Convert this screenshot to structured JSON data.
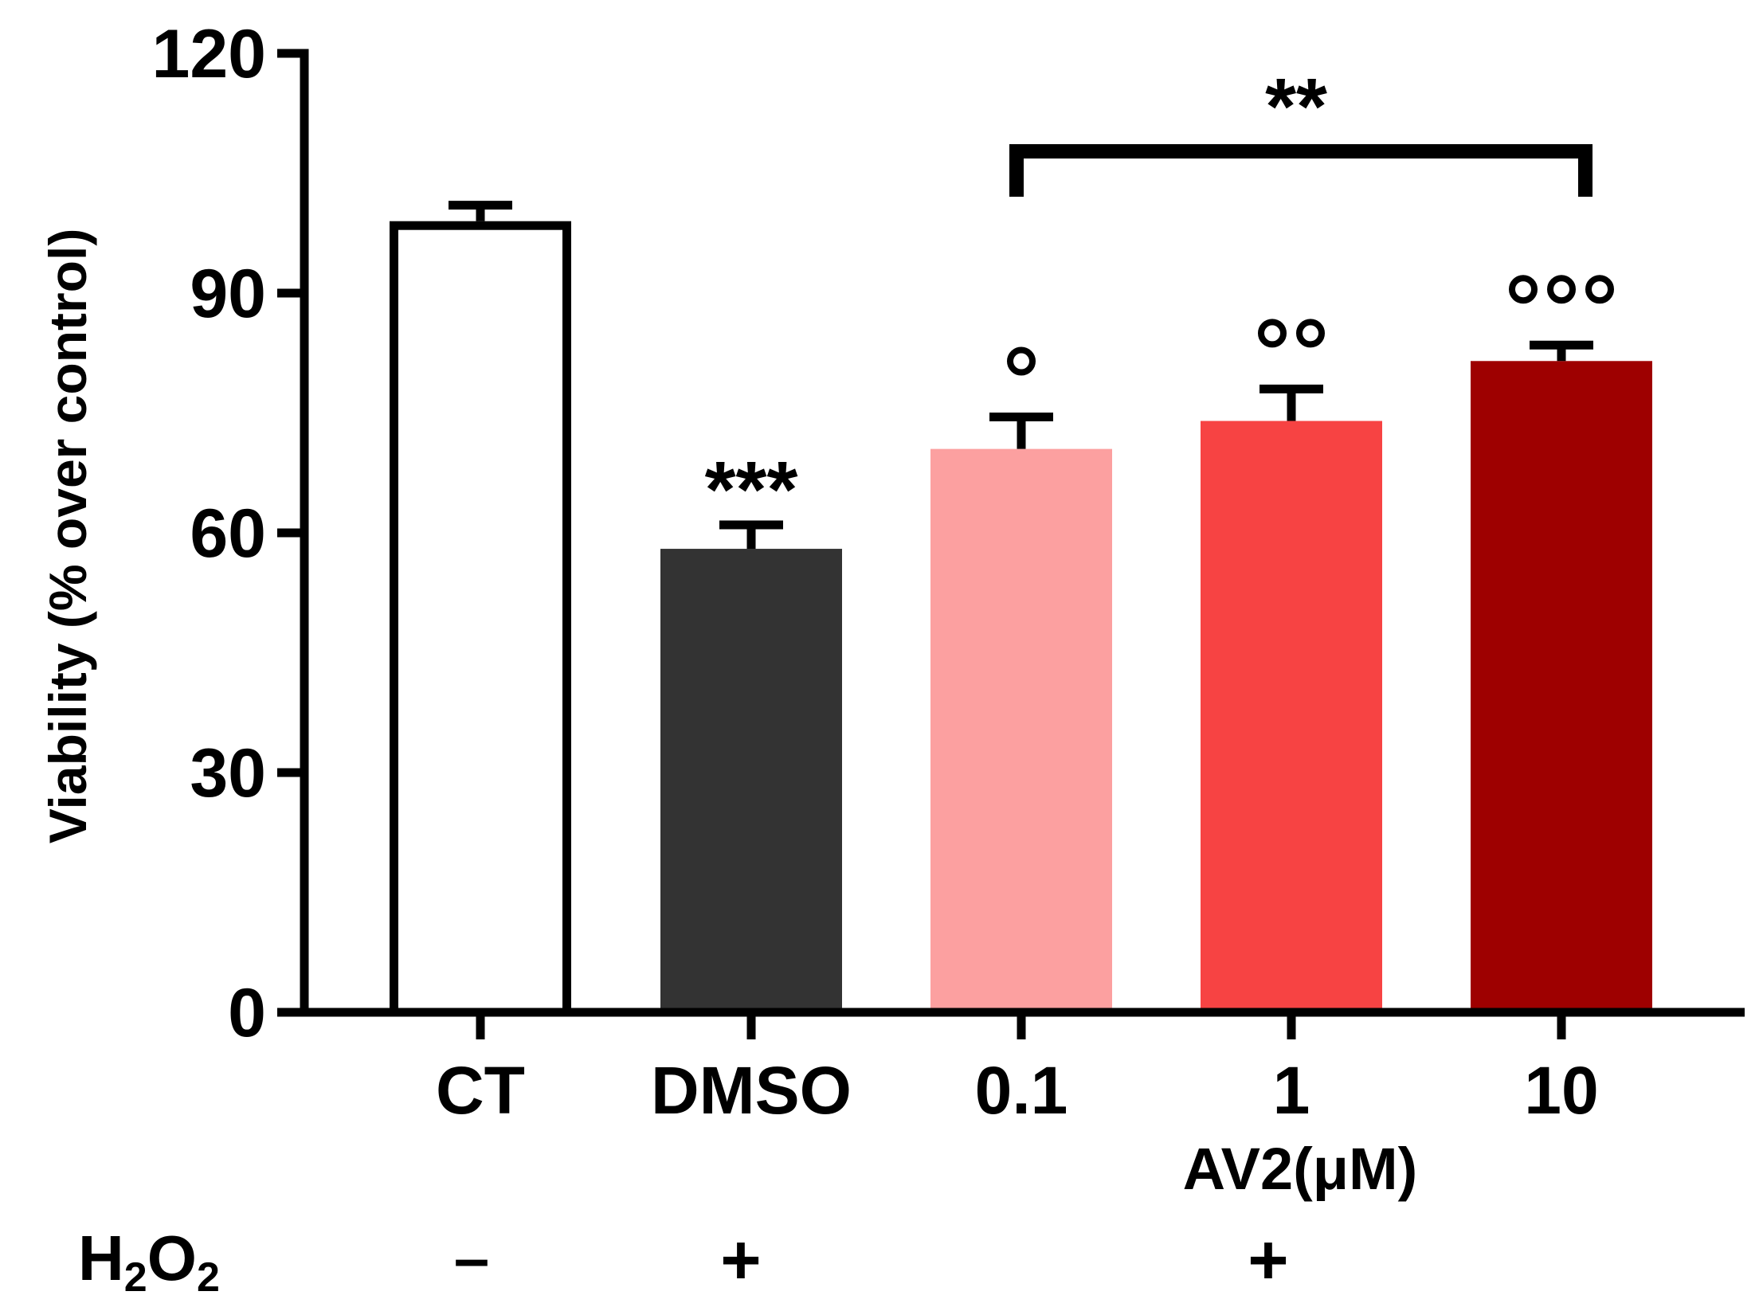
{
  "chart_data": {
    "type": "bar",
    "ylabel": "Viability (% over control)",
    "ylim": [
      0,
      120
    ],
    "yticks": [
      "0",
      "30",
      "60",
      "90",
      "120"
    ],
    "categories": [
      "CT",
      "DMSO",
      "0.1",
      "1",
      "10"
    ],
    "values": [
      99,
      58,
      70.5,
      74,
      81.5
    ],
    "errors": [
      2,
      3,
      4,
      4,
      2
    ],
    "colors": [
      "#ffffff",
      "#333333",
      "#fca0a0",
      "#f74343",
      "#9e0000"
    ],
    "bar_outline": [
      true,
      false,
      false,
      false,
      false
    ],
    "significance_vs_ct": [
      "",
      "***",
      "",
      "",
      ""
    ],
    "significance_vs_dmso": [
      "",
      "",
      "°",
      "°°",
      "°°°"
    ],
    "group_label": "AV2(μM)",
    "bracket": {
      "from": "0.1",
      "to": "10",
      "label": "**"
    },
    "h2o2": {
      "label": "H",
      "sub1": "2",
      "mid": "O",
      "sub2": "2",
      "minus": "–",
      "plus_dmso": "+",
      "plus_av2": "+"
    }
  }
}
